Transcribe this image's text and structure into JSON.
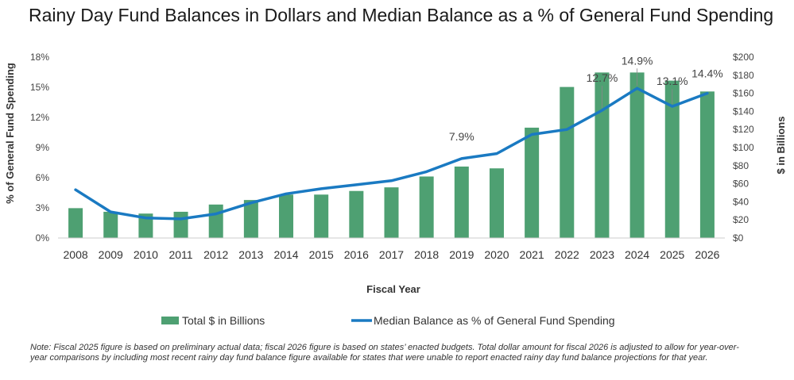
{
  "title": "Rainy Day Fund Balances in Dollars and Median Balance as a % of General Fund Spending",
  "note": "Note: Fiscal 2025 figure is based on preliminary actual data; fiscal 2026 figure is based on states’ enacted budgets. Total dollar amount for fiscal 2026 is adjusted to allow for year-over-year comparisons by including most recent rainy day fund balance figure available for states that were unable to report enacted rainy day fund balance projections for that year.",
  "colors": {
    "bar": "#4ea072",
    "line": "#1a7ac2"
  },
  "chart_data": {
    "type": "bar+line",
    "xlabel": "Fiscal Year",
    "ylabel_left": "% of General Fund Spending",
    "ylabel_right": "$ in Billions",
    "categories": [
      "2008",
      "2009",
      "2010",
      "2011",
      "2012",
      "2013",
      "2014",
      "2015",
      "2016",
      "2017",
      "2018",
      "2019",
      "2020",
      "2021",
      "2022",
      "2023",
      "2024",
      "2025",
      "2026"
    ],
    "y_left": {
      "ticks": [
        "0%",
        "3%",
        "6%",
        "9%",
        "12%",
        "15%",
        "18%"
      ],
      "lim": [
        0,
        18
      ]
    },
    "y_right": {
      "ticks": [
        "$0",
        "$20",
        "$40",
        "$60",
        "$80",
        "$100",
        "$120",
        "$140",
        "$160",
        "$180",
        "$200"
      ],
      "lim": [
        0,
        200
      ]
    },
    "series": [
      {
        "name": "Total $ in Billions",
        "type": "bar",
        "axis": "right",
        "values": [
          33,
          29,
          27,
          29,
          37,
          42,
          48,
          48,
          52,
          56,
          68,
          79,
          77,
          122,
          167,
          183,
          183,
          174,
          162
        ]
      },
      {
        "name": "Median Balance as % of General Fund Spending",
        "type": "line",
        "axis": "left",
        "values": [
          4.8,
          2.6,
          2.0,
          1.9,
          2.4,
          3.5,
          4.4,
          4.9,
          5.3,
          5.7,
          6.6,
          7.9,
          8.4,
          10.3,
          10.8,
          12.7,
          14.9,
          13.1,
          14.4
        ]
      }
    ],
    "data_labels": [
      {
        "index": 11,
        "text": "7.9%"
      },
      {
        "index": 15,
        "text": "12.7%"
      },
      {
        "index": 16,
        "text": "14.9%"
      },
      {
        "index": 17,
        "text": "13.1%"
      },
      {
        "index": 18,
        "text": "14.4%"
      }
    ],
    "legend": {
      "position": "bottom"
    },
    "grid": false
  }
}
